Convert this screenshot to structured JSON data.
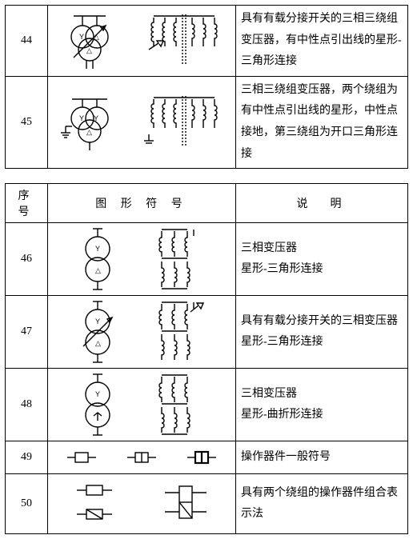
{
  "table1": {
    "rows": [
      {
        "num": "44",
        "desc": "具有有载分接开关的三相三绕组变压器，有中性点引出线的星形-三角形连接"
      },
      {
        "num": "45",
        "desc": "三相三绕组变压器，两个绕组为有中性点引出线的星形，中性点接地，第三绕组为开口三角形连接"
      }
    ]
  },
  "table2": {
    "headers": {
      "num": "序号",
      "sym": "图 形 符 号",
      "desc": "说　明"
    },
    "rows": [
      {
        "num": "46",
        "desc": "三相变压器\n星形-三角形连接"
      },
      {
        "num": "47",
        "desc": "具有有载分接开关的三相变压器\n星形-三角形连接"
      },
      {
        "num": "48",
        "desc": "三相变压器\n星形-曲折形连接"
      },
      {
        "num": "49",
        "desc": "操作器件一般符号"
      },
      {
        "num": "50",
        "desc": "具有两个绕组的操作器件组合表示法"
      }
    ]
  }
}
